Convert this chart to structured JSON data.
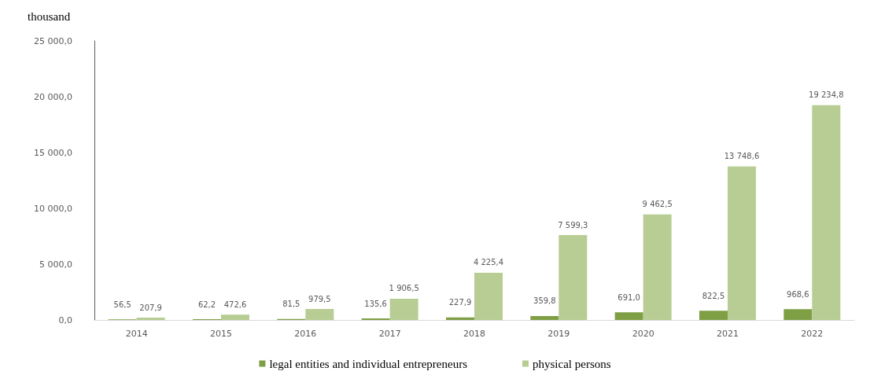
{
  "chart_data": {
    "type": "bar",
    "ylabel": "thousand",
    "categories": [
      "2014",
      "2015",
      "2016",
      "2017",
      "2018",
      "2019",
      "2020",
      "2021",
      "2022"
    ],
    "series": [
      {
        "name": "legal entities and individual entrepreneurs",
        "color": "#7f9f45",
        "values": [
          56.5,
          62.2,
          81.5,
          135.6,
          227.9,
          359.8,
          691.0,
          822.5,
          968.6
        ],
        "value_labels": [
          "56,5",
          "62,2",
          "81,5",
          "135,6",
          "227,9",
          "359,8",
          "691,0",
          "822,5",
          "968,6"
        ]
      },
      {
        "name": "physical persons",
        "color": "#b7cd93",
        "values": [
          207.9,
          472.6,
          979.5,
          1906.5,
          4225.4,
          7599.3,
          9462.5,
          13748.6,
          19234.8
        ],
        "value_labels": [
          "207,9",
          "472,6",
          "979,5",
          "1 906,5",
          "4 225,4",
          "7 599,3",
          "9 462,5",
          "13 748,6",
          "19 234,8"
        ]
      }
    ],
    "ylim": [
      0,
      25000
    ],
    "yticks": [
      {
        "value": 0,
        "label": "0,0"
      },
      {
        "value": 5000,
        "label": "5 000,0"
      },
      {
        "value": 10000,
        "label": "10 000,0"
      },
      {
        "value": 15000,
        "label": "15 000,0"
      },
      {
        "value": 20000,
        "label": "20 000,0"
      },
      {
        "value": 25000,
        "label": "25 000,0"
      }
    ],
    "grid": false,
    "legend": "bottom"
  }
}
